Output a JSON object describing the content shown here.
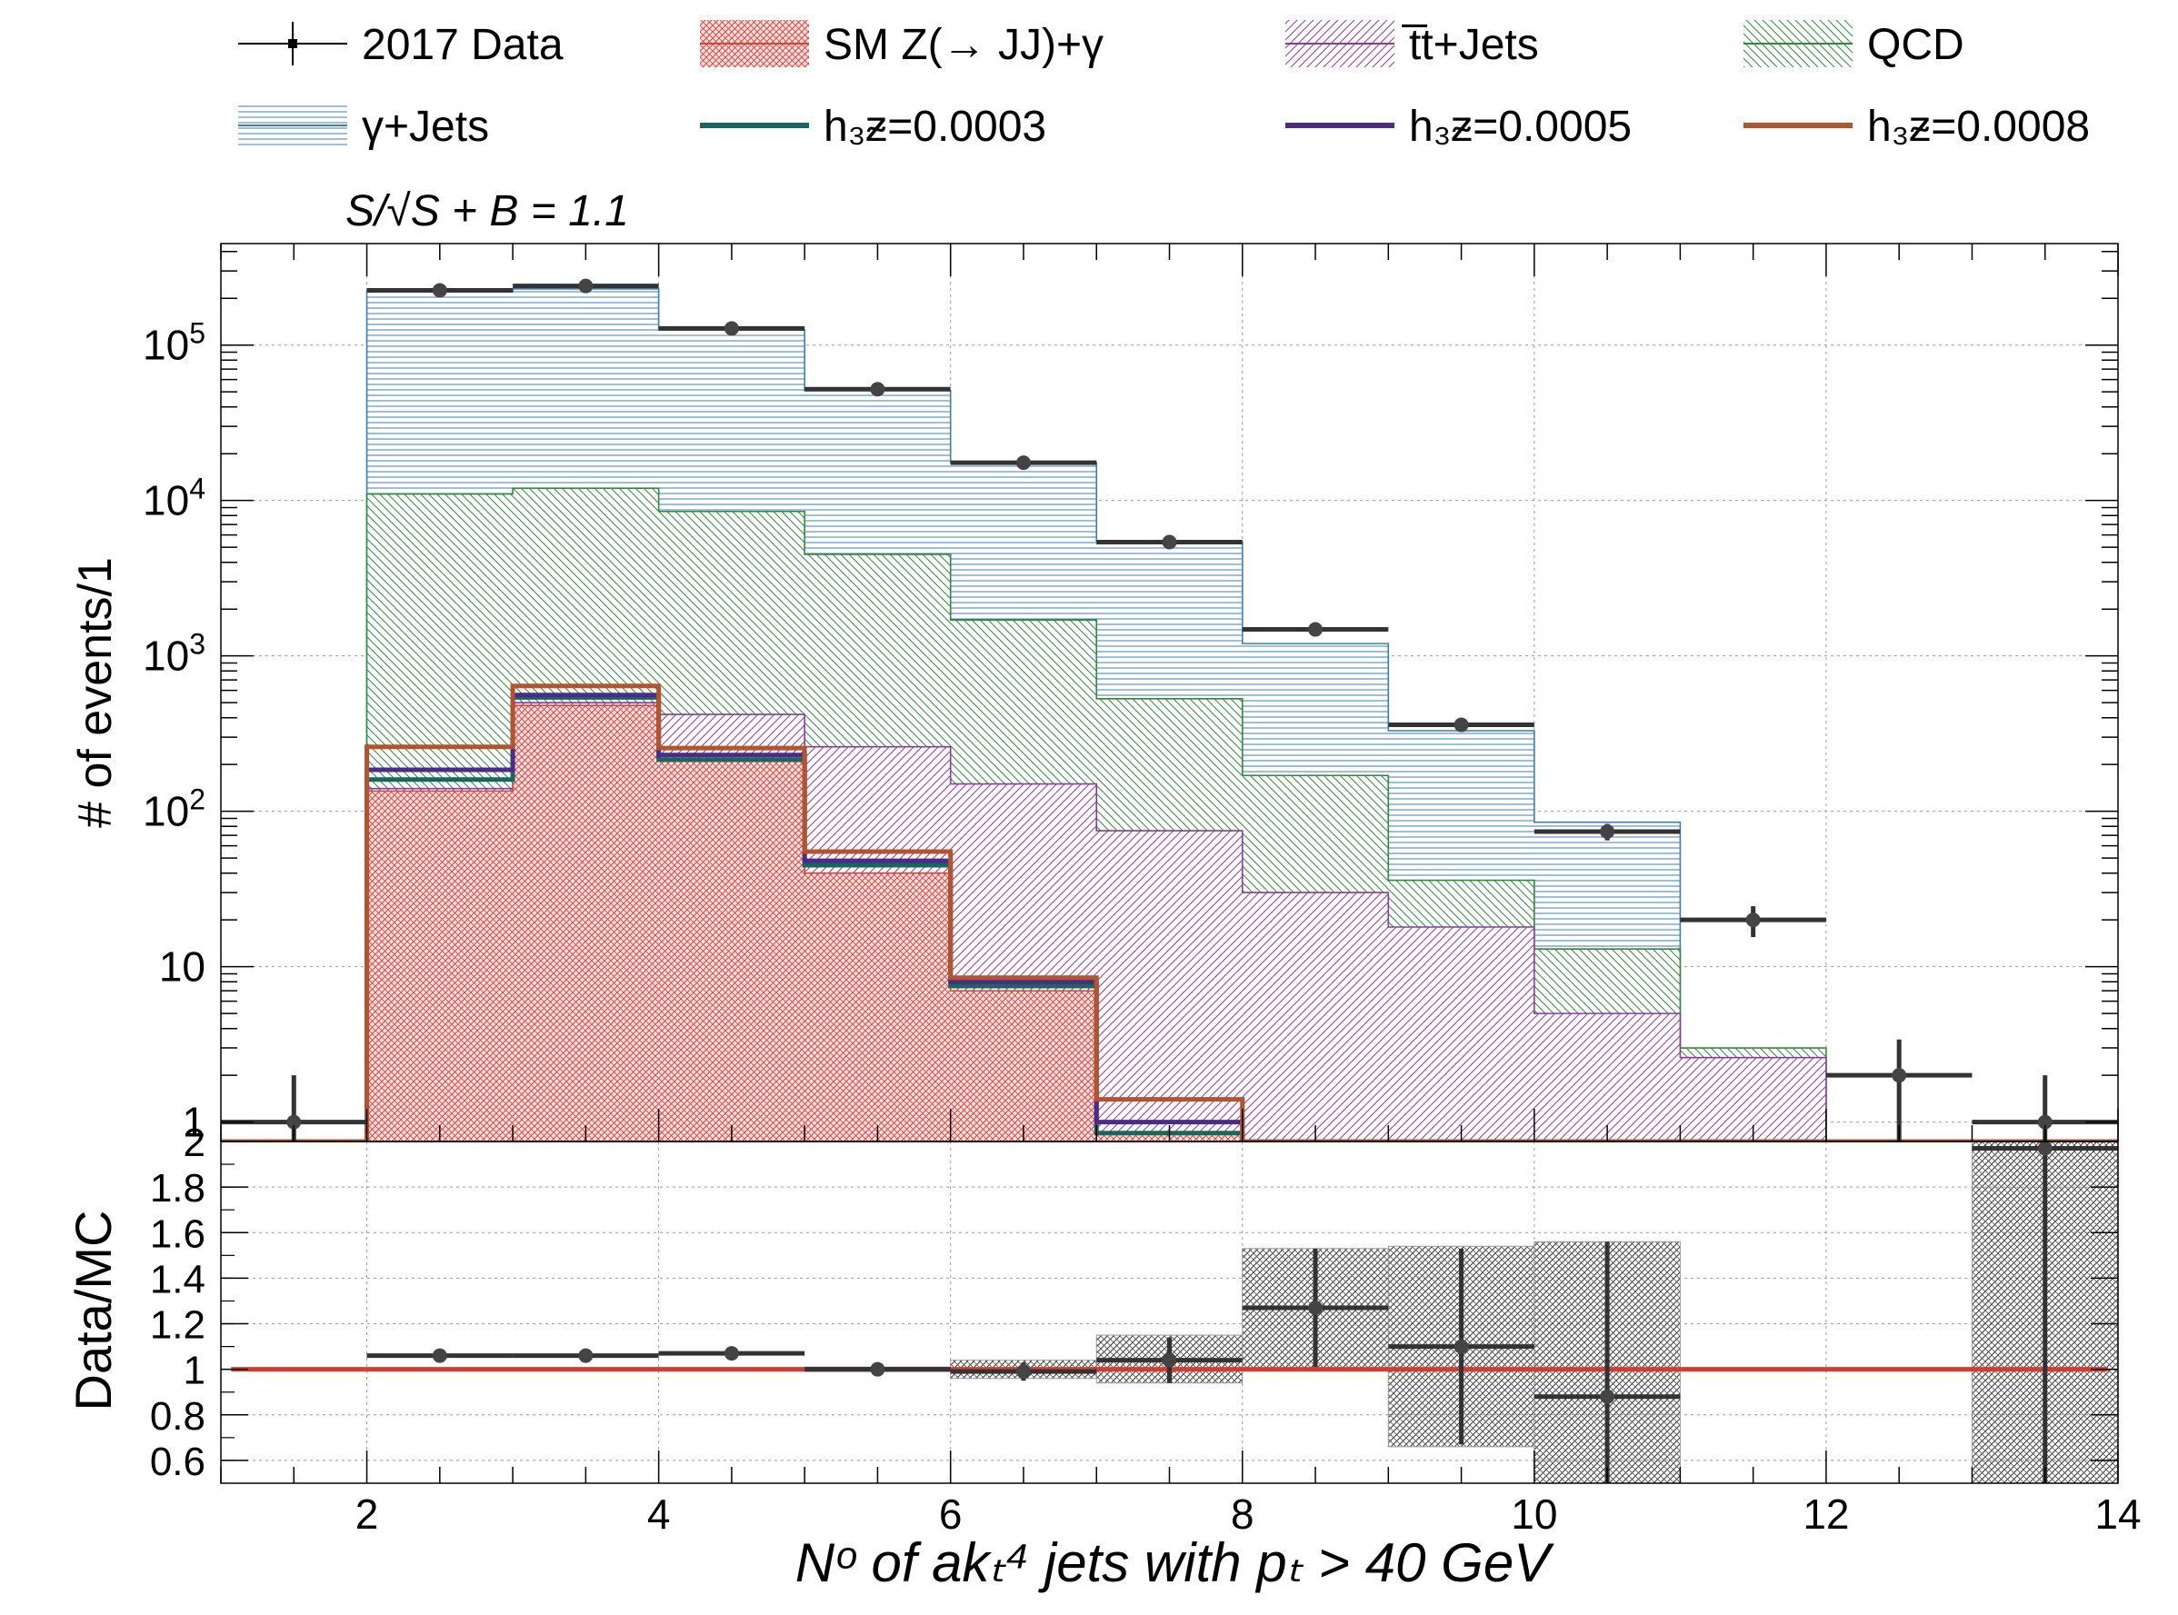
{
  "legend": {
    "items": [
      {
        "label": "2017 Data",
        "kind": "data",
        "color": "#000000"
      },
      {
        "label": "SM Z(→ JJ)+γ",
        "kind": "hatch",
        "pattern": "zgam",
        "color": "#e0423a"
      },
      {
        "label": "t̅t+Jets",
        "kind": "hatch",
        "pattern": "ttj",
        "color": "#8a3a9a"
      },
      {
        "label": "QCD",
        "kind": "hatch",
        "pattern": "qcd",
        "color": "#2e8b3a"
      },
      {
        "label": "γ+Jets",
        "kind": "hatch",
        "pattern": "gj",
        "color": "#3d7cb5"
      },
      {
        "label": "h₃ᵶ=0.0003",
        "kind": "line",
        "color": "#16685c"
      },
      {
        "label": "h₃ᵶ=0.0005",
        "kind": "line",
        "color": "#4a2b8c"
      },
      {
        "label": "h₃ᵶ=0.0008",
        "kind": "line",
        "color": "#b5542a"
      }
    ]
  },
  "significance": {
    "label": "S/√S + B = 1.1"
  },
  "chart_data": [
    {
      "type": "bar",
      "subtype": "stacked-histogram",
      "ylabel": "# of events/1",
      "yscale": "log",
      "xlim": [
        1,
        14
      ],
      "ylim": [
        0.75,
        450000
      ],
      "grid": true,
      "bin_edges": [
        1,
        2,
        3,
        4,
        5,
        6,
        7,
        8,
        9,
        10,
        11,
        12,
        13,
        14
      ],
      "yticks": [
        {
          "label": "1",
          "value": 1
        },
        {
          "label": "10",
          "value": 10
        },
        {
          "label": "10",
          "sup": "2",
          "value": 100
        },
        {
          "label": "10",
          "sup": "3",
          "value": 1000
        },
        {
          "label": "10",
          "sup": "4",
          "value": 10000
        },
        {
          "label": "10",
          "sup": "5",
          "value": 100000
        }
      ],
      "stack_cumulative": [
        {
          "name": "SM Z(→ JJ)+γ",
          "color": "#e0423a",
          "pattern": "zgam",
          "values": [
            0,
            135,
            480,
            210,
            40,
            7,
            0.85,
            0,
            0,
            0,
            0,
            0,
            0
          ]
        },
        {
          "name": "t̅t+Jets",
          "color": "#8a3a9a",
          "pattern": "ttj",
          "values": [
            0,
            140,
            500,
            420,
            260,
            150,
            75,
            30,
            18,
            5,
            2.6,
            0,
            0
          ]
        },
        {
          "name": "QCD",
          "color": "#2e8b3a",
          "pattern": "qcd",
          "values": [
            0,
            11000,
            12000,
            8500,
            4500,
            1700,
            530,
            170,
            36,
            13,
            3,
            0,
            0
          ]
        },
        {
          "name": "γ+Jets",
          "color": "#3d7cb5",
          "pattern": "gj",
          "values": [
            0,
            220000,
            230000,
            125000,
            51000,
            17500,
            5400,
            1200,
            330,
            85,
            0,
            0,
            0
          ]
        }
      ],
      "signals": [
        {
          "name": "h3Z=0.0003",
          "color": "#16685c",
          "values": [
            0,
            160,
            540,
            215,
            45,
            7.5,
            0.85,
            0,
            0,
            0,
            0,
            0,
            0
          ]
        },
        {
          "name": "h3Z=0.0005",
          "color": "#4a2b8c",
          "values": [
            0,
            185,
            560,
            230,
            48,
            8,
            1,
            0,
            0,
            0,
            0,
            0,
            0
          ]
        },
        {
          "name": "h3Z=0.0008",
          "color": "#b5542a",
          "values": [
            0,
            260,
            640,
            255,
            55,
            8.5,
            1.4,
            0,
            0,
            0,
            0,
            0,
            0
          ]
        }
      ],
      "data": {
        "name": "2017 Data",
        "x": [
          1.5,
          2.5,
          3.5,
          4.5,
          5.5,
          6.5,
          7.5,
          8.5,
          9.5,
          10.5,
          11.5,
          12.5,
          13.5
        ],
        "y": [
          1,
          225000,
          240000,
          128000,
          52000,
          17500,
          5400,
          1480,
          360,
          74,
          20,
          2,
          1
        ],
        "err_lo": [
          1,
          500,
          500,
          350,
          230,
          130,
          73,
          38,
          19,
          9,
          4.5,
          1.3,
          1
        ],
        "err_hi": [
          1,
          500,
          500,
          350,
          230,
          130,
          73,
          38,
          19,
          9,
          4.5,
          1.4,
          1
        ]
      }
    },
    {
      "type": "scatter",
      "subtype": "ratio",
      "ylabel": "Data/MC",
      "xlabel": "Nᵒ  of  akₜ⁴  jets  with  pₜ > 40  GeV",
      "xlim": [
        1,
        14
      ],
      "ylim": [
        0.5,
        2
      ],
      "grid": true,
      "reference_line": {
        "y": 1,
        "color": "#d93a2e"
      },
      "xticks": [
        {
          "label": "2",
          "value": 2
        },
        {
          "label": "4",
          "value": 4
        },
        {
          "label": "6",
          "value": 6
        },
        {
          "label": "8",
          "value": 8
        },
        {
          "label": "10",
          "value": 10
        },
        {
          "label": "12",
          "value": 12
        },
        {
          "label": "14",
          "value": 14
        }
      ],
      "yticks": [
        {
          "label": "0.6",
          "value": 0.6
        },
        {
          "label": "0.8",
          "value": 0.8
        },
        {
          "label": "1",
          "value": 1
        },
        {
          "label": "1.2",
          "value": 1.2
        },
        {
          "label": "1.4",
          "value": 1.4
        },
        {
          "label": "1.6",
          "value": 1.6
        },
        {
          "label": "1.8",
          "value": 1.8
        },
        {
          "label": "2",
          "value": 2
        }
      ],
      "points": {
        "x_lo": [
          2,
          3,
          4,
          5,
          6,
          7,
          8,
          9,
          10,
          13
        ],
        "x_hi": [
          3,
          4,
          5,
          6,
          7,
          8,
          9,
          10,
          11,
          14
        ],
        "y": [
          1.06,
          1.06,
          1.07,
          1.0,
          0.99,
          1.04,
          1.27,
          1.1,
          0.88,
          1.97
        ],
        "err": [
          0.005,
          0.005,
          0.005,
          0.01,
          0.04,
          0.1,
          0.26,
          0.43,
          0.68,
          1.6
        ]
      },
      "uncertainty_bands": [
        {
          "x0": 5,
          "x1": 6,
          "lo": 0.99,
          "hi": 1.01
        },
        {
          "x0": 6,
          "x1": 7,
          "lo": 0.96,
          "hi": 1.04
        },
        {
          "x0": 7,
          "x1": 8,
          "lo": 0.94,
          "hi": 1.15
        },
        {
          "x0": 8,
          "x1": 9,
          "lo": 1.0,
          "hi": 1.53
        },
        {
          "x0": 9,
          "x1": 10,
          "lo": 0.66,
          "hi": 1.54
        },
        {
          "x0": 10,
          "x1": 11,
          "lo": 0.5,
          "hi": 1.56
        },
        {
          "x0": 13,
          "x1": 14,
          "lo": 0.5,
          "hi": 2.0
        }
      ]
    }
  ]
}
